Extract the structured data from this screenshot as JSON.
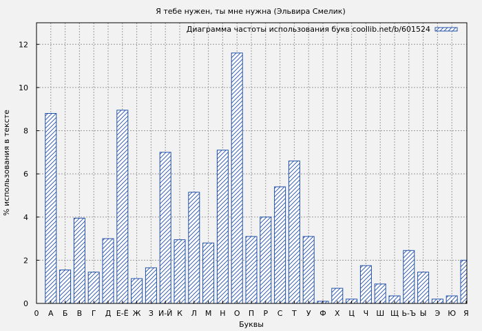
{
  "chart_data": {
    "type": "bar",
    "title": "Я тебе нужен, ты мне нужна (Эльвира Смелик)",
    "xlabel": "Буквы",
    "ylabel": "% использования в тексте",
    "legend": {
      "label": "Диаграмма частоты использования букв coollib.net/b/601524",
      "position": "top-right"
    },
    "x_origin_label": "0",
    "categories": [
      "А",
      "Б",
      "В",
      "Г",
      "Д",
      "Е-Ё",
      "Ж",
      "З",
      "И-Й",
      "К",
      "Л",
      "М",
      "Н",
      "О",
      "П",
      "Р",
      "С",
      "Т",
      "У",
      "Ф",
      "Х",
      "Ц",
      "Ч",
      "Ш",
      "Щ",
      "Ь-Ъ",
      "Ы",
      "Э",
      "Ю",
      "Я"
    ],
    "values": [
      8.8,
      1.55,
      3.95,
      1.45,
      3.0,
      8.95,
      1.15,
      1.65,
      7.0,
      2.95,
      5.15,
      2.8,
      7.1,
      11.6,
      3.1,
      4.0,
      5.4,
      6.6,
      3.1,
      0.1,
      0.7,
      0.2,
      1.75,
      0.9,
      0.35,
      2.45,
      1.45,
      0.2,
      0.35,
      2.0
    ],
    "ylim": [
      0,
      13
    ],
    "yticks": [
      0,
      2,
      4,
      6,
      8,
      10,
      12
    ],
    "grid": true,
    "colors": {
      "bar": "#1f4fa8",
      "grid": "#999999",
      "background": "#f2f2f2"
    }
  }
}
